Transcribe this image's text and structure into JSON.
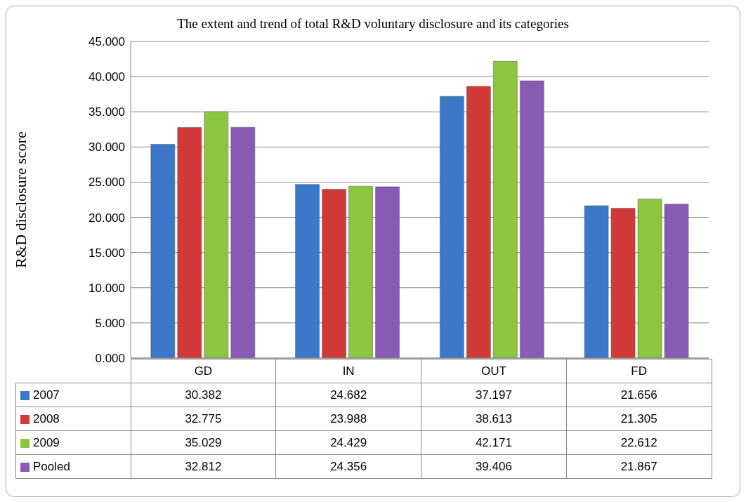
{
  "chart_data": {
    "type": "bar",
    "title": "The extent and trend of total R&D voluntary disclosure and its categories",
    "ylabel": "R&D disclosure score",
    "categories": [
      "GD",
      "IN",
      "OUT",
      "FD"
    ],
    "series": [
      {
        "name": "2007",
        "color": "#3b78c9",
        "values": [
          30.382,
          24.682,
          37.197,
          21.656
        ]
      },
      {
        "name": "2008",
        "color": "#d23a3a",
        "values": [
          32.775,
          23.988,
          38.613,
          21.305
        ]
      },
      {
        "name": "2009",
        "color": "#8cc63f",
        "values": [
          35.029,
          24.429,
          42.171,
          22.612
        ]
      },
      {
        "name": "Pooled",
        "color": "#8a5bb5",
        "values": [
          32.812,
          24.356,
          39.406,
          21.867
        ]
      }
    ],
    "ylim": [
      0,
      45
    ],
    "yticks": [
      {
        "value": 0,
        "label": "0.000"
      },
      {
        "value": 5,
        "label": "5.000"
      },
      {
        "value": 10,
        "label": "10.000"
      },
      {
        "value": 15,
        "label": "15.000"
      },
      {
        "value": 20,
        "label": "20.000"
      },
      {
        "value": 25,
        "label": "25.000"
      },
      {
        "value": 30,
        "label": "30.000"
      },
      {
        "value": 35,
        "label": "35.000"
      },
      {
        "value": 40,
        "label": "40.000"
      },
      {
        "value": 45,
        "label": "45.000"
      }
    ],
    "grid": "y",
    "data_labels": true,
    "legend": "bottom"
  }
}
